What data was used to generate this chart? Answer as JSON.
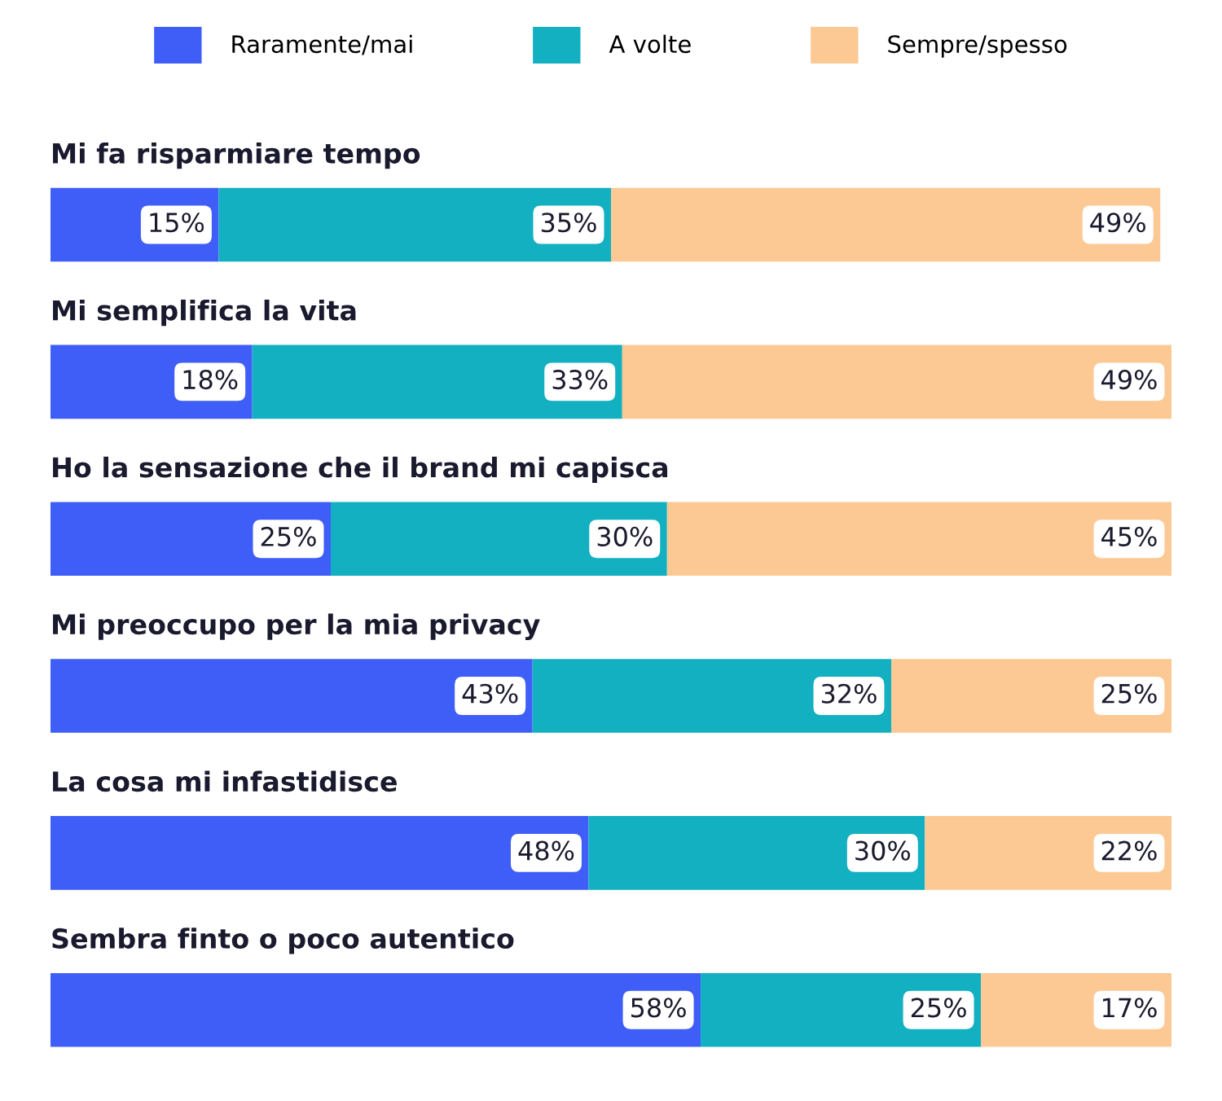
{
  "chart_data": {
    "type": "bar",
    "orientation": "horizontal",
    "stacked": true,
    "legend": "top",
    "categories": [
      "Mi fa risparmiare tempo",
      "Mi semplifica la vita",
      "Ho la sensazione che il brand mi capisca",
      "Mi preoccupo per la mia privacy",
      "La cosa mi infastidisce",
      "Sembra finto o poco autentico"
    ],
    "series": [
      {
        "name": "Raramente/mai",
        "color": "#3f5ef8",
        "values": [
          15,
          18,
          25,
          43,
          48,
          58
        ],
        "value_labels": [
          "15%",
          "18%",
          "25%",
          "43%",
          "48%",
          "58%"
        ]
      },
      {
        "name": "A volte",
        "color": "#12b0c0",
        "values": [
          35,
          33,
          30,
          32,
          30,
          25
        ],
        "value_labels": [
          "35%",
          "33%",
          "30%",
          "32%",
          "30%",
          "25%"
        ]
      },
      {
        "name": "Sempre/spesso",
        "color": "#fcc994",
        "values": [
          49,
          49,
          45,
          25,
          22,
          17
        ],
        "value_labels": [
          "49%",
          "49%",
          "45%",
          "25%",
          "22%",
          "17%"
        ]
      }
    ]
  }
}
